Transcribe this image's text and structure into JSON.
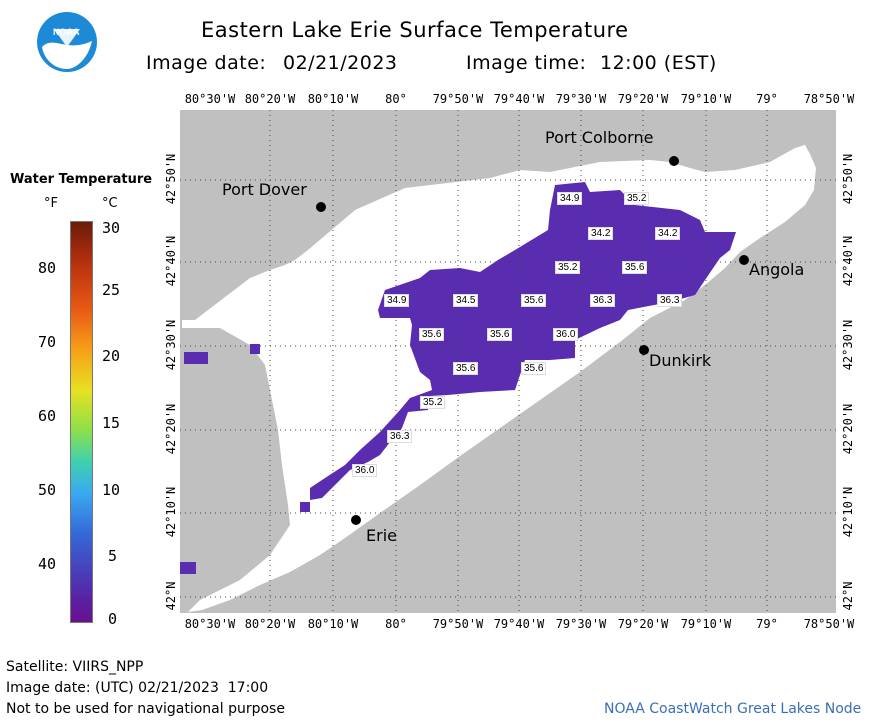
{
  "header": {
    "title": "Eastern Lake Erie Surface Temperature",
    "image_date_label": "Image date:",
    "image_date": "02/21/2023",
    "image_time_label": "Image time:",
    "image_time": "12:00 (EST)"
  },
  "logo": {
    "text": "NOAA"
  },
  "map": {
    "lon_labels": [
      "80°30'W",
      "80°20'W",
      "80°10'W",
      "80°",
      "79°50'W",
      "79°40'W",
      "79°30'W",
      "79°20'W",
      "79°10'W",
      "79°",
      "78°50'W"
    ],
    "lat_labels": [
      "42°50'N",
      "42°40'N",
      "42°30'N",
      "42°20'N",
      "42°10'N",
      "42°N"
    ],
    "cities": [
      {
        "name": "Port Colborne"
      },
      {
        "name": "Port Dover"
      },
      {
        "name": "Angola"
      },
      {
        "name": "Dunkirk"
      },
      {
        "name": "Erie"
      }
    ],
    "temperature_labels": [
      "34.9",
      "35.2",
      "34.2",
      "34.2",
      "35.2",
      "35.6",
      "34.9",
      "34.5",
      "35.6",
      "36.3",
      "36.3",
      "35.6",
      "35.6",
      "36.0",
      "35.6",
      "35.6",
      "35.2",
      "36.3",
      "36.0"
    ],
    "colors": {
      "land": "#c0c0c0",
      "water": "#ffffff",
      "cold_water": "#5a2cb0",
      "grid": "#555555"
    }
  },
  "legend": {
    "title": "Water Temperature",
    "unit_f": "°F",
    "unit_c": "°C",
    "f_ticks": [
      "80",
      "70",
      "60",
      "50",
      "40"
    ],
    "c_ticks": [
      "30",
      "25",
      "20",
      "15",
      "10",
      "5",
      "0"
    ]
  },
  "footer": {
    "satellite": "Satellite: VIIRS_NPP",
    "utc_date": "Image date: (UTC) 02/21/2023  17:00",
    "disclaimer": "Not to be used for navigational purpose",
    "credit": "NOAA CoastWatch Great Lakes Node"
  }
}
